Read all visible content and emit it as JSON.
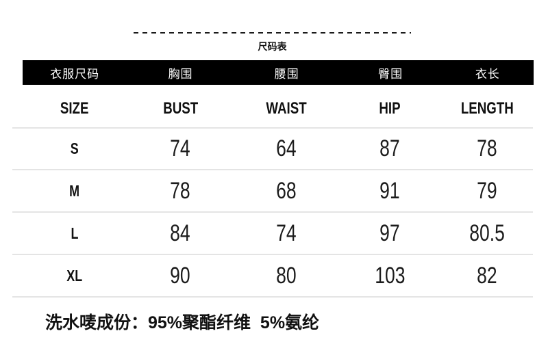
{
  "size_chart": {
    "title": "尺码表",
    "header_cn": [
      "衣服尺码",
      "胸围",
      "腰围",
      "臀围",
      "衣长"
    ],
    "header_en": [
      "SIZE",
      "BUST",
      "WAIST",
      "HIP",
      "LENGTH"
    ],
    "rows": [
      {
        "size": "S",
        "values": [
          "74",
          "64",
          "87",
          "78"
        ]
      },
      {
        "size": "M",
        "values": [
          "78",
          "68",
          "91",
          "79"
        ]
      },
      {
        "size": "L",
        "values": [
          "84",
          "74",
          "97",
          "80.5"
        ]
      },
      {
        "size": "XL",
        "values": [
          "90",
          "80",
          "103",
          "82"
        ]
      }
    ],
    "colors": {
      "header_background": "#000000",
      "header_text": "#ffffff",
      "row_divider": "#e4e4e4",
      "body_text": "#1c1c1c",
      "dash_line": "#1b1b1b"
    }
  },
  "footer": {
    "composition": "洗水唛成份：95%聚酯纤维  5%氨纶"
  }
}
